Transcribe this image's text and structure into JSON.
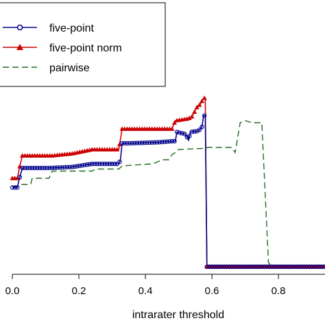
{
  "chart_data": {
    "type": "line",
    "title": "",
    "xlabel": "intrarater threshold",
    "ylabel": "",
    "xlim": [
      0,
      0.94
    ],
    "ylim": [
      0,
      1
    ],
    "grid": false,
    "legend_position": "top-left",
    "x_ticks": [
      {
        "value": 0.0,
        "label": "0.0"
      },
      {
        "value": 0.2,
        "label": "0.2"
      },
      {
        "value": 0.4,
        "label": "0.4"
      },
      {
        "value": 0.6,
        "label": "0.6"
      },
      {
        "value": 0.8,
        "label": "0.8"
      }
    ],
    "series": [
      {
        "name": "five-point",
        "color": "#00008b",
        "marker": "circle-open",
        "line": "solid",
        "points": [
          [
            0.0,
            0.385
          ],
          [
            0.015,
            0.385
          ],
          [
            0.02,
            0.42
          ],
          [
            0.03,
            0.48
          ],
          [
            0.11,
            0.48
          ],
          [
            0.18,
            0.485
          ],
          [
            0.2,
            0.49
          ],
          [
            0.24,
            0.5
          ],
          [
            0.32,
            0.5
          ],
          [
            0.325,
            0.52
          ],
          [
            0.33,
            0.6
          ],
          [
            0.35,
            0.6
          ],
          [
            0.44,
            0.605
          ],
          [
            0.48,
            0.61
          ],
          [
            0.49,
            0.61
          ],
          [
            0.495,
            0.655
          ],
          [
            0.52,
            0.645
          ],
          [
            0.53,
            0.615
          ],
          [
            0.535,
            0.655
          ],
          [
            0.56,
            0.66
          ],
          [
            0.57,
            0.68
          ],
          [
            0.575,
            0.735
          ],
          [
            0.58,
            0.735
          ],
          [
            0.585,
            0.0
          ],
          [
            0.94,
            0.0
          ]
        ]
      },
      {
        "name": "five-point norm",
        "color": "#cc0000",
        "marker": "triangle-filled",
        "line": "solid",
        "points": [
          [
            0.0,
            0.43
          ],
          [
            0.015,
            0.43
          ],
          [
            0.02,
            0.47
          ],
          [
            0.03,
            0.54
          ],
          [
            0.12,
            0.54
          ],
          [
            0.18,
            0.55
          ],
          [
            0.24,
            0.57
          ],
          [
            0.32,
            0.57
          ],
          [
            0.33,
            0.67
          ],
          [
            0.48,
            0.67
          ],
          [
            0.49,
            0.71
          ],
          [
            0.53,
            0.72
          ],
          [
            0.54,
            0.73
          ],
          [
            0.555,
            0.775
          ],
          [
            0.565,
            0.79
          ],
          [
            0.575,
            0.82
          ],
          [
            0.58,
            0.82
          ],
          [
            0.585,
            0.0
          ],
          [
            0.94,
            0.0
          ]
        ]
      },
      {
        "name": "pairwise",
        "color": "#1e6b1e",
        "marker": "none",
        "line": "dashed",
        "points": [
          [
            0.0,
            0.39
          ],
          [
            0.01,
            0.39
          ],
          [
            0.02,
            0.4
          ],
          [
            0.03,
            0.4
          ],
          [
            0.055,
            0.4
          ],
          [
            0.06,
            0.43
          ],
          [
            0.11,
            0.43
          ],
          [
            0.12,
            0.465
          ],
          [
            0.24,
            0.465
          ],
          [
            0.25,
            0.475
          ],
          [
            0.32,
            0.475
          ],
          [
            0.33,
            0.49
          ],
          [
            0.42,
            0.5
          ],
          [
            0.43,
            0.505
          ],
          [
            0.45,
            0.52
          ],
          [
            0.47,
            0.52
          ],
          [
            0.48,
            0.545
          ],
          [
            0.49,
            0.555
          ],
          [
            0.5,
            0.57
          ],
          [
            0.57,
            0.575
          ],
          [
            0.59,
            0.58
          ],
          [
            0.66,
            0.58
          ],
          [
            0.67,
            0.555
          ],
          [
            0.685,
            0.7
          ],
          [
            0.7,
            0.71
          ],
          [
            0.72,
            0.7
          ],
          [
            0.75,
            0.7
          ],
          [
            0.77,
            0.02
          ],
          [
            0.78,
            0.0
          ],
          [
            0.94,
            0.0
          ]
        ]
      }
    ]
  }
}
